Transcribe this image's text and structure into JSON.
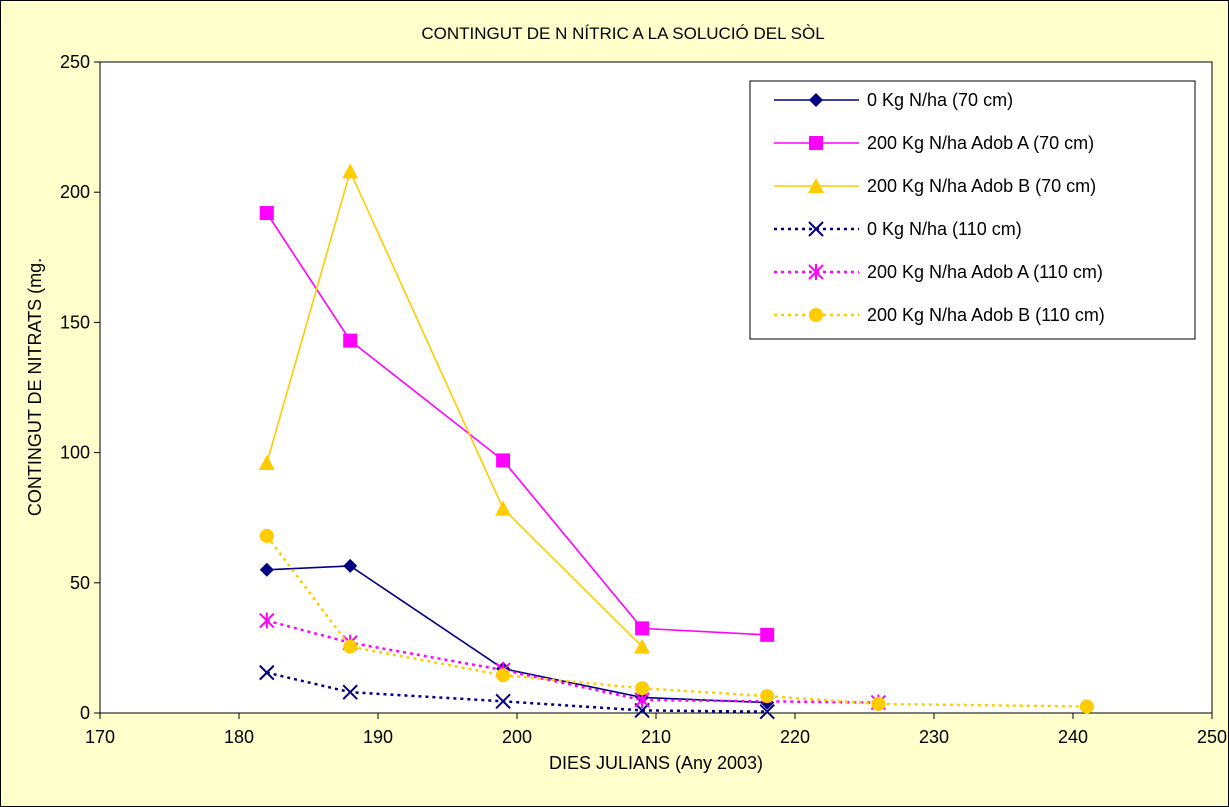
{
  "chart_data": {
    "type": "line",
    "title": "CONTINGUT DE N NÍTRIC A LA SOLUCIÓ DEL SÒL",
    "xlabel": "DIES JULIANS (Any 2003)",
    "ylabel": "CONTINGUT DE NITRATS (mg.",
    "xlim": [
      170,
      250
    ],
    "ylim": [
      0,
      250
    ],
    "xticks": [
      170,
      180,
      190,
      200,
      210,
      220,
      230,
      240,
      250
    ],
    "yticks": [
      0,
      50,
      100,
      150,
      200,
      250
    ],
    "grid": false,
    "legend_position": "top-right",
    "series": [
      {
        "name": "0 Kg N/ha (70 cm)",
        "color": "#000080",
        "dash": "solid",
        "marker": "diamond",
        "x": [
          182,
          188,
          199,
          209,
          218
        ],
        "y": [
          55,
          56.5,
          17,
          6,
          4
        ]
      },
      {
        "name": "200 Kg N/ha Adob A (70 cm)",
        "color": "#ff00ff",
        "dash": "solid",
        "marker": "square",
        "x": [
          182,
          188,
          199,
          209,
          218
        ],
        "y": [
          192,
          143,
          97,
          32.5,
          30
        ]
      },
      {
        "name": "200 Kg N/ha Adob B (70 cm)",
        "color": "#ffcc00",
        "dash": "solid",
        "marker": "triangle",
        "x": [
          182,
          188,
          199,
          209
        ],
        "y": [
          96,
          208,
          78.5,
          25.5
        ]
      },
      {
        "name": "0 Kg N/ha (110 cm)",
        "color": "#000080",
        "dash": "dotted",
        "marker": "x",
        "x": [
          182,
          188,
          199,
          209,
          218
        ],
        "y": [
          15.5,
          8,
          4.5,
          1,
          0.5
        ]
      },
      {
        "name": "200 Kg N/ha Adob A (110 cm)",
        "color": "#ff00ff",
        "dash": "dotted",
        "marker": "asterisk",
        "x": [
          182,
          188,
          199,
          209,
          226
        ],
        "y": [
          35.5,
          27,
          16.5,
          5,
          4
        ]
      },
      {
        "name": "200 Kg N/ha Adob B (110 cm)",
        "color": "#ffcc00",
        "dash": "dotted",
        "marker": "circle",
        "x": [
          182,
          188,
          199,
          209,
          218,
          226,
          241
        ],
        "y": [
          68,
          25.5,
          14.5,
          9.5,
          6.5,
          3.5,
          2.5
        ]
      }
    ]
  }
}
